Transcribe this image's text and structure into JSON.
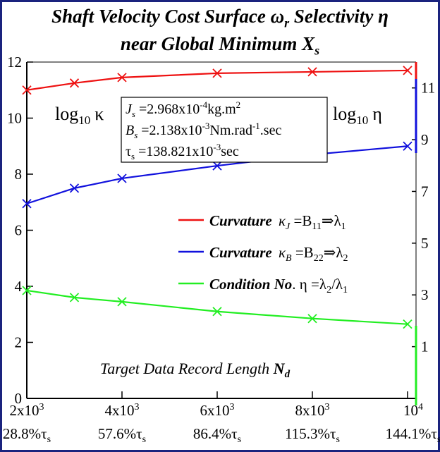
{
  "title": {
    "line1_pre": "Shaft Velocity Cost Surface ",
    "line1_omega": "ω",
    "line1_omega_sub": "r",
    "line1_post": " Selectivity η",
    "line2_pre": "near Global Minimum ",
    "line2_X": "X",
    "line2_X_sub": "s"
  },
  "colors": {
    "frame": "#1a237e",
    "kappa_J": "#ee1111",
    "kappa_B": "#1111dd",
    "eta": "#22ee22"
  },
  "params_box": {
    "J_sym": "J",
    "J_sub": "s",
    "J_pre": " =2.968x10",
    "J_exp": "-4",
    "J_post": "kg.m",
    "J_pow": "2",
    "B_sym": "B",
    "B_sub": "s",
    "B_pre": " =2.138x10",
    "B_exp": "-3",
    "B_mid": "Nm.rad",
    "B_exp2": "-1",
    "B_post": ".sec",
    "tau_sym": "τ",
    "tau_sub": "s",
    "tau_pre": " =138.821x10",
    "tau_exp": "-3",
    "tau_post": "sec"
  },
  "left_axis_label": "log10 κ",
  "left_axis_label_base": "log",
  "left_axis_label_sub": "10",
  "left_axis_label_sym": "κ",
  "right_axis_label": "log10 η",
  "right_axis_label_base": "log",
  "right_axis_label_sub": "10",
  "right_axis_label_sym": "η",
  "legend": {
    "kappa_J": {
      "bold": "Curvature ",
      "kappa": "κ",
      "kappa_sub": "J",
      "eq": " =B",
      "B_sub": "11",
      "arrow": "⇒",
      "lam": "λ",
      "lam_sub": "1"
    },
    "kappa_B": {
      "bold": "Curvature ",
      "kappa": "κ",
      "kappa_sub": "B",
      "eq": " =B",
      "B_sub": "22",
      "arrow": "⇒",
      "lam": "λ",
      "lam_sub": "2"
    },
    "eta": {
      "bold": "Condition No",
      "dot": ".",
      "eta": " η =λ",
      "lam2_sub": "2",
      "slash": "/λ",
      "lam1_sub": "1"
    }
  },
  "xlabel": {
    "text": "Target Data Record Length ",
    "N": "N",
    "N_sub": "d"
  },
  "chart_data": {
    "type": "line",
    "x": [
      2000,
      3000,
      4000,
      6000,
      8000,
      10000
    ],
    "xlim": [
      2000,
      10000
    ],
    "ylim_left": [
      0,
      12
    ],
    "ylim_right": [
      -1,
      12
    ],
    "left_ticks": [
      {
        "value": 0,
        "label": "0"
      },
      {
        "value": 2,
        "label": "2"
      },
      {
        "value": 4,
        "label": "4"
      },
      {
        "value": 6,
        "label": "6"
      },
      {
        "value": 8,
        "label": "8"
      },
      {
        "value": 10,
        "label": "10"
      },
      {
        "value": 12,
        "label": "12"
      }
    ],
    "right_ticks": [
      {
        "value": 1,
        "label": "1"
      },
      {
        "value": 3,
        "label": "3"
      },
      {
        "value": 5,
        "label": "5"
      },
      {
        "value": 7,
        "label": "7"
      },
      {
        "value": 9,
        "label": "9"
      },
      {
        "value": 11,
        "label": "11"
      }
    ],
    "x_ticks": [
      {
        "value": 2000,
        "base": "2x10",
        "exp": "3",
        "pct": "28.8%",
        "tau": "τ",
        "tau_sub": "s"
      },
      {
        "value": 4000,
        "base": "4x10",
        "exp": "3",
        "pct": "57.6%",
        "tau": "τ",
        "tau_sub": "s"
      },
      {
        "value": 6000,
        "base": "6x10",
        "exp": "3",
        "pct": "86.4%",
        "tau": "τ",
        "tau_sub": "s"
      },
      {
        "value": 8000,
        "base": "8x10",
        "exp": "3",
        "pct": "115.3%",
        "tau": "τ",
        "tau_sub": "s"
      },
      {
        "value": 10000,
        "base": "10",
        "exp": "4",
        "pct": "144.1%",
        "tau": "τ",
        "tau_sub": "s"
      }
    ],
    "series": [
      {
        "key": "kappa_J",
        "axis": "left",
        "values": [
          11.0,
          11.25,
          11.45,
          11.6,
          11.65,
          11.7
        ]
      },
      {
        "key": "kappa_B",
        "axis": "left",
        "values": [
          6.95,
          7.5,
          7.85,
          8.3,
          8.7,
          9.0
        ]
      },
      {
        "key": "eta",
        "axis": "left",
        "values": [
          3.85,
          3.6,
          3.45,
          3.1,
          2.85,
          2.65
        ]
      }
    ],
    "grid": false
  }
}
